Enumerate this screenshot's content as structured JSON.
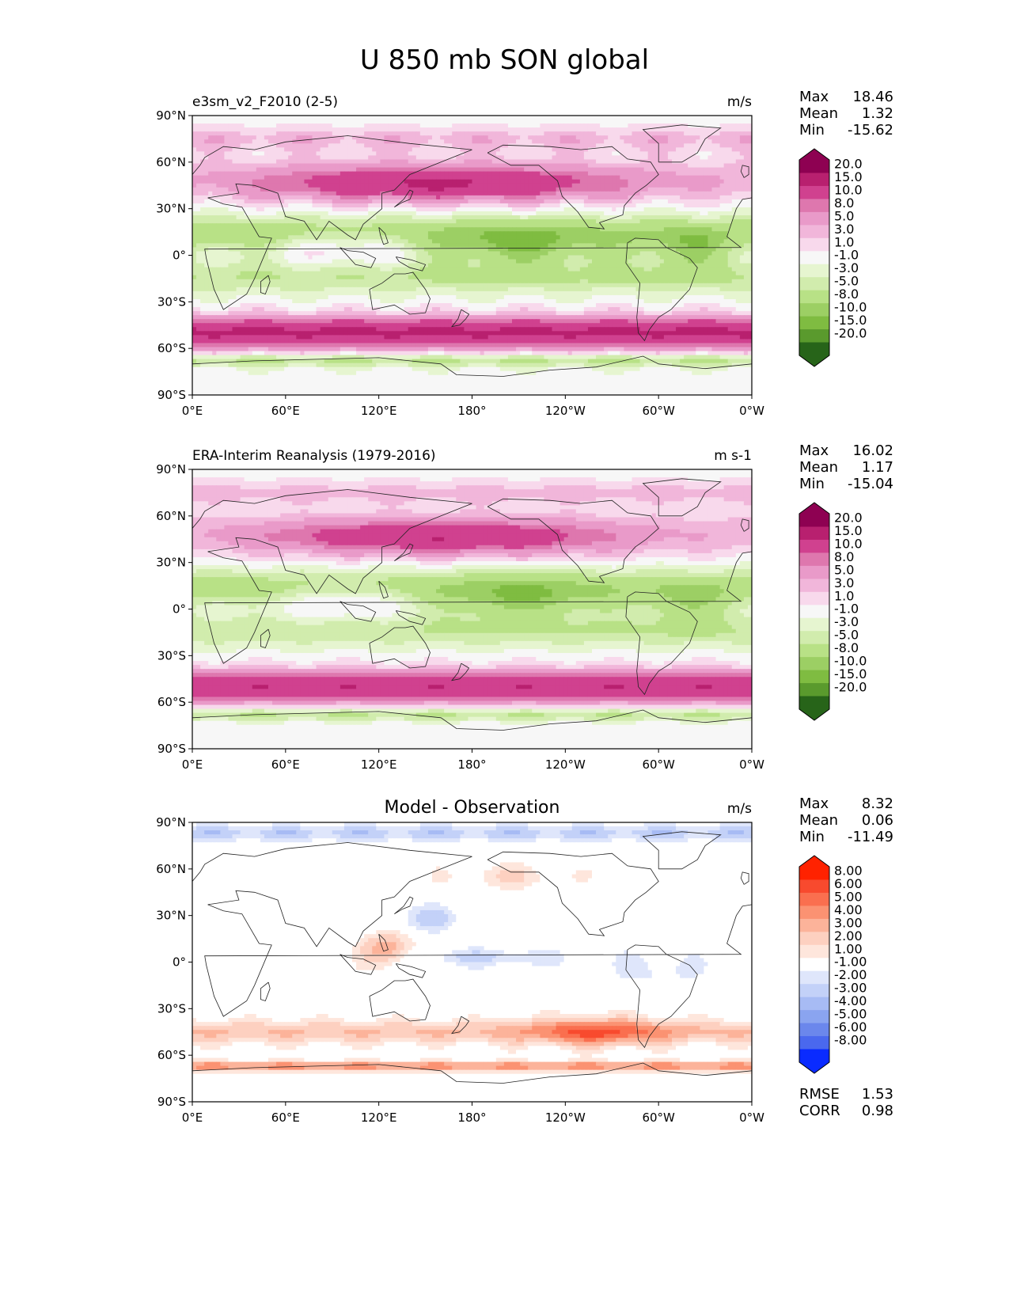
{
  "title": "U 850 mb SON global",
  "axes": {
    "lat_ticks": [
      "90°N",
      "60°N",
      "30°N",
      "0°",
      "30°S",
      "60°S",
      "90°S"
    ],
    "lon_ticks": [
      "0°E",
      "60°E",
      "120°E",
      "180°",
      "120°W",
      "60°W",
      "0°W"
    ]
  },
  "chart_data": [
    {
      "type": "heatmap",
      "title": "e3sm_v2_F2010 (2-5)",
      "units": "m/s",
      "stats": [
        {
          "label": "Max",
          "value": "18.46"
        },
        {
          "label": "Mean",
          "value": "1.32"
        },
        {
          "label": "Min",
          "value": "-15.62"
        }
      ],
      "colorbar_levels": [
        "20.0",
        "15.0",
        "10.0",
        "8.0",
        "5.0",
        "3.0",
        "1.0",
        "-1.0",
        "-3.0",
        "-5.0",
        "-8.0",
        "-10.0",
        "-15.0",
        "-20.0"
      ],
      "colormap": [
        "#8e0152",
        "#b8206f",
        "#d0418f",
        "#de77ae",
        "#e99ac9",
        "#f1b6da",
        "#f8d9ec",
        "#f7f7f7",
        "#e6f5d0",
        "#d1ecad",
        "#b8e186",
        "#9ccf64",
        "#7fbc41",
        "#5a9a2d",
        "#276419"
      ]
    },
    {
      "type": "heatmap",
      "title": "ERA-Interim Reanalysis (1979-2016)",
      "units": "m s-1",
      "stats": [
        {
          "label": "Max",
          "value": "16.02"
        },
        {
          "label": "Mean",
          "value": "1.17"
        },
        {
          "label": "Min",
          "value": "-15.04"
        }
      ],
      "colorbar_levels": [
        "20.0",
        "15.0",
        "10.0",
        "8.0",
        "5.0",
        "3.0",
        "1.0",
        "-1.0",
        "-3.0",
        "-5.0",
        "-8.0",
        "-10.0",
        "-15.0",
        "-20.0"
      ],
      "colormap": [
        "#8e0152",
        "#b8206f",
        "#d0418f",
        "#de77ae",
        "#e99ac9",
        "#f1b6da",
        "#f8d9ec",
        "#f7f7f7",
        "#e6f5d0",
        "#d1ecad",
        "#b8e186",
        "#9ccf64",
        "#7fbc41",
        "#5a9a2d",
        "#276419"
      ]
    },
    {
      "type": "heatmap",
      "title": "Model - Observation",
      "units": "m/s",
      "stats": [
        {
          "label": "Max",
          "value": "8.32"
        },
        {
          "label": "Mean",
          "value": "0.06"
        },
        {
          "label": "Min",
          "value": "-11.49"
        }
      ],
      "extra_stats": [
        {
          "label": "RMSE",
          "value": "1.53"
        },
        {
          "label": "CORR",
          "value": "0.98"
        }
      ],
      "colorbar_levels": [
        "8.00",
        "6.00",
        "5.00",
        "4.00",
        "3.00",
        "2.00",
        "1.00",
        "-1.00",
        "-2.00",
        "-3.00",
        "-4.00",
        "-5.00",
        "-6.00",
        "-8.00"
      ],
      "colormap": [
        "#ff2200",
        "#f84a2e",
        "#fa6f4f",
        "#fb9272",
        "#fcb39a",
        "#fdd0c0",
        "#fee6dc",
        "#ffffff",
        "#dfe6fb",
        "#c3d1f8",
        "#a7bbf4",
        "#8aa4f0",
        "#6b87ec",
        "#4a68ee",
        "#0a2bff"
      ]
    }
  ]
}
